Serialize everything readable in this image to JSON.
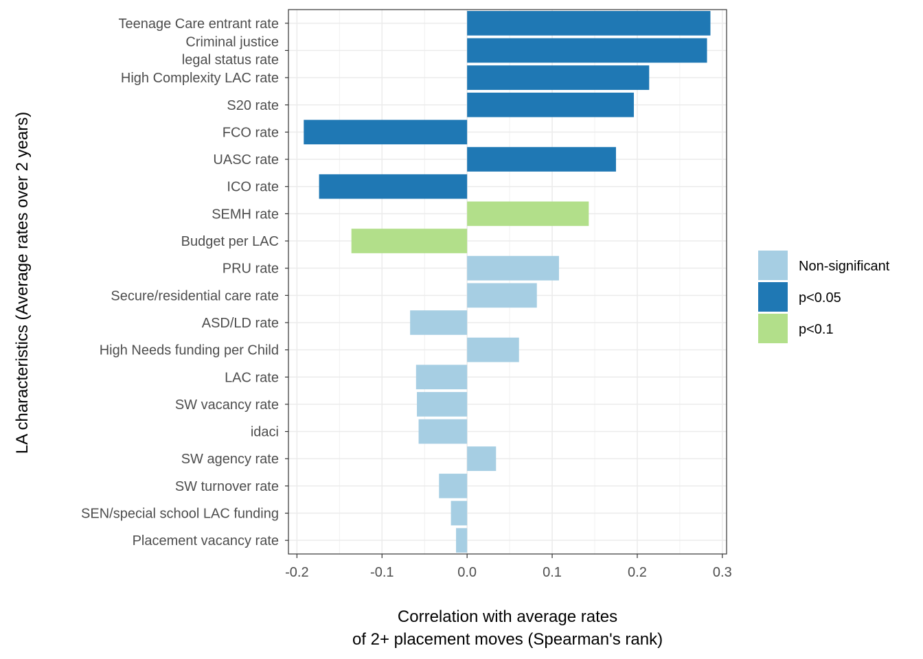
{
  "chart_data": {
    "type": "bar",
    "orientation": "horizontal",
    "xlabel": [
      "Correlation with average rates",
      "of 2+ placement moves (Spearman's rank)"
    ],
    "ylabel": "LA characteristics (Average rates over 2 years)",
    "xlim": [
      -0.21,
      0.305
    ],
    "xticks": [
      "-0.2",
      "-0.1",
      "0.0",
      "0.1",
      "0.2",
      "0.3"
    ],
    "xtick_values": [
      -0.2,
      -0.1,
      0.0,
      0.1,
      0.2,
      0.3
    ],
    "grid": true,
    "legend_position": "right",
    "legend": [
      {
        "key": "ns",
        "label": "Non-significant",
        "color": "#A6CEE3"
      },
      {
        "key": "p05",
        "label": "p<0.05",
        "color": "#1F78B4"
      },
      {
        "key": "p10",
        "label": "p<0.1",
        "color": "#B2DF8A"
      }
    ],
    "bars": [
      {
        "label": [
          "Teenage Care entrant rate"
        ],
        "value": 0.286,
        "sig": "p05"
      },
      {
        "label": [
          "Criminal justice",
          "legal status rate"
        ],
        "value": 0.282,
        "sig": "p05"
      },
      {
        "label": [
          "High Complexity LAC rate"
        ],
        "value": 0.214,
        "sig": "p05"
      },
      {
        "label": [
          "S20 rate"
        ],
        "value": 0.196,
        "sig": "p05"
      },
      {
        "label": [
          "FCO rate"
        ],
        "value": -0.192,
        "sig": "p05"
      },
      {
        "label": [
          "UASC rate"
        ],
        "value": 0.175,
        "sig": "p05"
      },
      {
        "label": [
          "ICO rate"
        ],
        "value": -0.174,
        "sig": "p05"
      },
      {
        "label": [
          "SEMH rate"
        ],
        "value": 0.143,
        "sig": "p10"
      },
      {
        "label": [
          "Budget per LAC"
        ],
        "value": -0.136,
        "sig": "p10"
      },
      {
        "label": [
          "PRU rate"
        ],
        "value": 0.108,
        "sig": "ns"
      },
      {
        "label": [
          "Secure/residential care rate"
        ],
        "value": 0.082,
        "sig": "ns"
      },
      {
        "label": [
          "ASD/LD rate"
        ],
        "value": -0.067,
        "sig": "ns"
      },
      {
        "label": [
          "High Needs funding per Child"
        ],
        "value": 0.061,
        "sig": "ns"
      },
      {
        "label": [
          "LAC rate"
        ],
        "value": -0.06,
        "sig": "ns"
      },
      {
        "label": [
          "SW vacancy rate"
        ],
        "value": -0.059,
        "sig": "ns"
      },
      {
        "label": [
          "idaci"
        ],
        "value": -0.057,
        "sig": "ns"
      },
      {
        "label": [
          "SW agency rate"
        ],
        "value": 0.034,
        "sig": "ns"
      },
      {
        "label": [
          "SW turnover rate"
        ],
        "value": -0.033,
        "sig": "ns"
      },
      {
        "label": [
          "SEN/special school LAC funding"
        ],
        "value": -0.019,
        "sig": "ns"
      },
      {
        "label": [
          "Placement vacancy rate"
        ],
        "value": -0.013,
        "sig": "ns"
      }
    ]
  }
}
